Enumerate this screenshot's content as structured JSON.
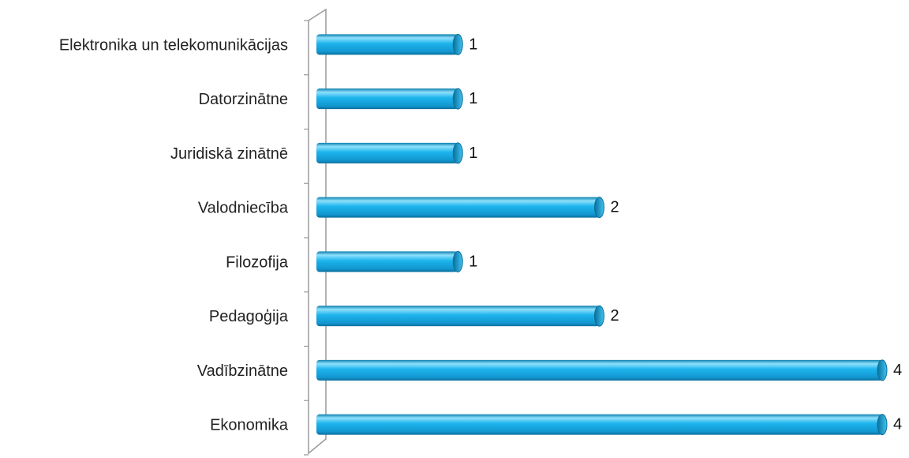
{
  "chart_data": {
    "type": "bar",
    "orientation": "horizontal",
    "categories": [
      "Elektronika un telekomunikācijas",
      "Datorzinātne",
      "Juridiskā zinātnē",
      "Valodniecība",
      "Filozofija",
      "Pedagoģija",
      "Vadībzinātne",
      "Ekonomika"
    ],
    "values": [
      1,
      1,
      1,
      2,
      1,
      2,
      4,
      4
    ],
    "xlim": [
      0,
      4
    ],
    "grid": false,
    "legend": "none",
    "data_labels": true,
    "style": "3d-cylinder",
    "colors": {
      "bar": "#1db4ec",
      "bar_light": "#8fe0fb",
      "bar_dark": "#0b7fb0",
      "cap": "#0f8cc2",
      "axis": "#9a9a9a"
    }
  }
}
